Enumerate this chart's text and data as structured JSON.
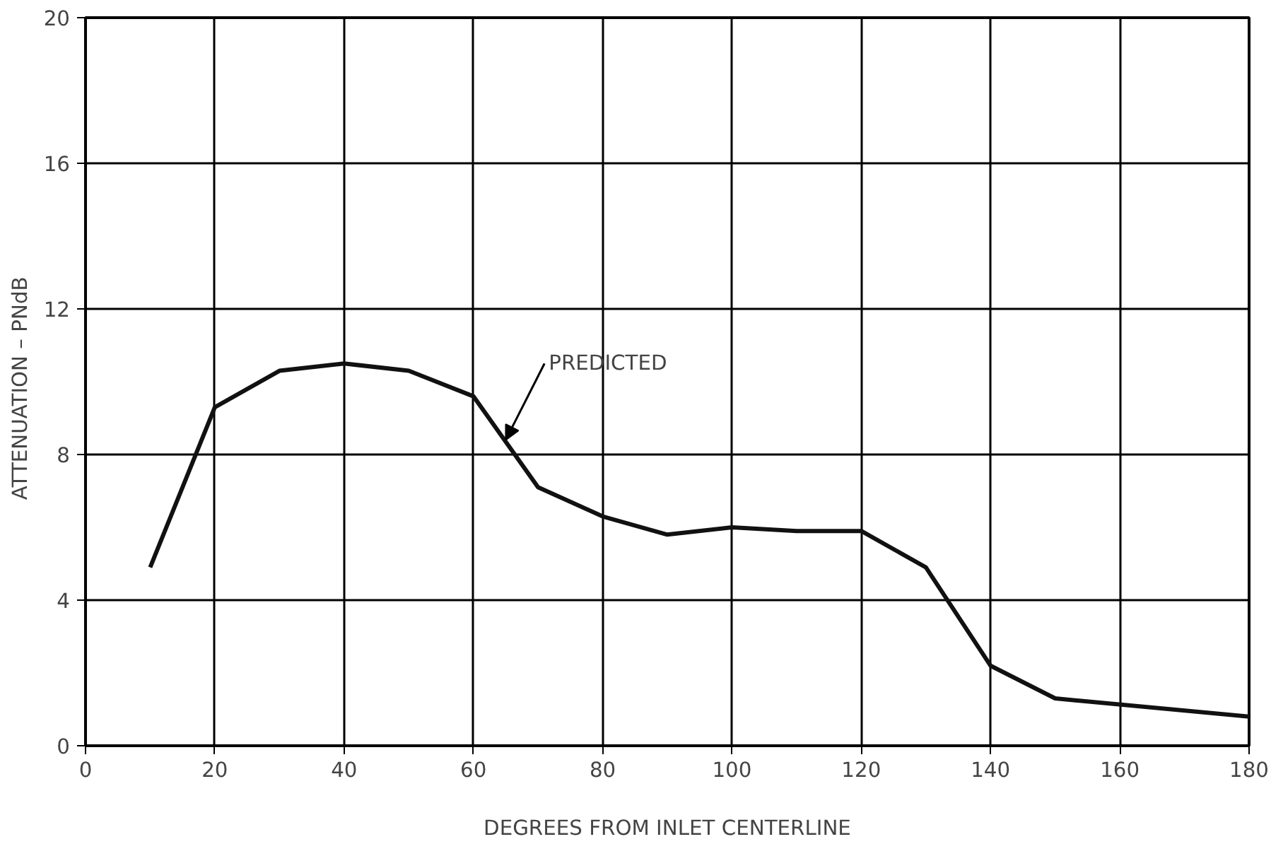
{
  "chart_data": {
    "type": "line",
    "xlabel": "DEGREES FROM INLET CENTERLINE",
    "ylabel": "ATTENUATION  –  PNdB",
    "x": [
      10,
      20,
      30,
      40,
      50,
      60,
      70,
      80,
      90,
      100,
      110,
      120,
      130,
      140,
      150,
      180
    ],
    "series": [
      {
        "color": "#111111",
        "values": [
          4.9,
          9.3,
          10.3,
          10.5,
          10.3,
          9.6,
          7.1,
          6.3,
          5.8,
          6.0,
          5.9,
          5.9,
          4.9,
          2.2,
          1.3,
          0.8
        ]
      }
    ],
    "xlim": [
      0,
      180
    ],
    "ylim": [
      0,
      20
    ],
    "xticks": [
      0,
      20,
      40,
      60,
      80,
      100,
      120,
      140,
      160,
      180
    ],
    "yticks": [
      0,
      4,
      8,
      12,
      16,
      20
    ],
    "grid": true,
    "marker": "none",
    "line_style": "solid",
    "annotations": [
      {
        "text": "PREDICTED",
        "x": 65,
        "y": 8.4
      }
    ]
  }
}
